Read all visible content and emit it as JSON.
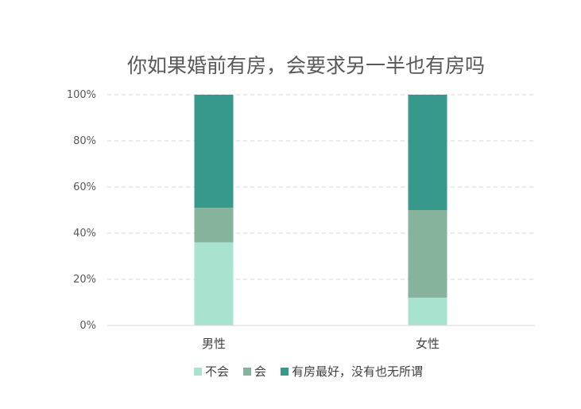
{
  "chart_data": {
    "type": "bar",
    "stacked": true,
    "percent": true,
    "title": "你如果婚前有房，会要求另一半也有房吗",
    "xlabel": "",
    "ylabel": "",
    "categories": [
      "男性",
      "女性"
    ],
    "series": [
      {
        "name": "不会",
        "color": "#a8e3d0",
        "values": [
          36,
          12
        ]
      },
      {
        "name": "会",
        "color": "#85b39c",
        "values": [
          15,
          38
        ]
      },
      {
        "name": "有房最好，没有也无所谓",
        "color": "#36998c",
        "values": [
          49,
          50
        ]
      }
    ],
    "ylim": [
      0,
      100
    ],
    "yticks": [
      0,
      20,
      40,
      60,
      80,
      100
    ],
    "ytick_labels": [
      "0%",
      "20%",
      "40%",
      "60%",
      "80%",
      "100%"
    ],
    "grid": true,
    "legend": "bottom"
  }
}
